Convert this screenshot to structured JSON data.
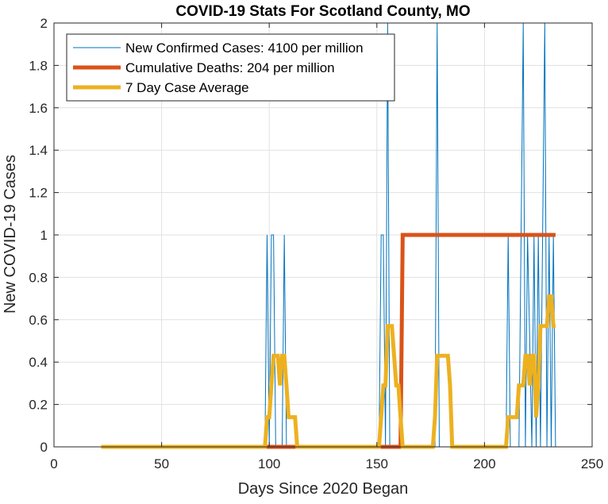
{
  "chart_data": {
    "type": "line",
    "title": "COVID-19 Stats For Scotland County, MO",
    "xlabel": "Days Since 2020 Began",
    "ylabel": "New COVID-19 Cases",
    "xlim": [
      0,
      250
    ],
    "ylim": [
      0,
      2
    ],
    "xticks": [
      0,
      50,
      100,
      150,
      200,
      250
    ],
    "yticks": [
      0,
      0.2,
      0.4,
      0.6,
      0.8,
      1,
      1.2,
      1.4,
      1.6,
      1.8,
      2
    ],
    "grid": true,
    "legend_position": "top-left",
    "series": [
      {
        "name": "New Confirmed Cases: 4100 per million",
        "color": "#0072BD",
        "line_width": "thin",
        "x": [
          22,
          98,
          99,
          100,
          101,
          102,
          103,
          104,
          105,
          106,
          107,
          108,
          151,
          152,
          153,
          154,
          155,
          156,
          177,
          178,
          179,
          210,
          211,
          212,
          216,
          217,
          218,
          219,
          220,
          222,
          223,
          224,
          225,
          226,
          227,
          228,
          229,
          230,
          231,
          232,
          233
        ],
        "y": [
          0,
          0,
          1,
          0,
          1,
          1,
          0,
          0,
          0,
          0,
          1,
          0,
          0,
          1,
          1,
          0,
          2,
          0,
          0,
          2,
          0,
          0,
          1,
          0,
          0,
          1,
          2,
          0,
          1,
          0,
          1,
          0,
          1,
          0,
          1,
          2,
          0,
          1,
          0,
          1,
          0
        ]
      },
      {
        "name": "Cumulative Deaths: 204 per million",
        "color": "#D95319",
        "line_width": "thick",
        "x": [
          22,
          161,
          162,
          233
        ],
        "y": [
          0,
          0,
          1,
          1
        ]
      },
      {
        "name": "7 Day Case Average",
        "color": "#EDB120",
        "line_width": "thick",
        "x": [
          22,
          98,
          99,
          100,
          101,
          102,
          103,
          104,
          105,
          106,
          107,
          108,
          109,
          112,
          113,
          150,
          151,
          152,
          153,
          154,
          155,
          156,
          157,
          158,
          159,
          160,
          161,
          162,
          176,
          177,
          178,
          179,
          183,
          184,
          185,
          209,
          210,
          211,
          215,
          216,
          217,
          218,
          219,
          220,
          221,
          222,
          223,
          224,
          225,
          226,
          227,
          228,
          229,
          230,
          231,
          232,
          233
        ],
        "y": [
          0,
          0,
          0.14,
          0.14,
          0.29,
          0.43,
          0.43,
          0.43,
          0.29,
          0.43,
          0.43,
          0.29,
          0.14,
          0.14,
          0,
          0,
          0,
          0.14,
          0.29,
          0.29,
          0.57,
          0.57,
          0.57,
          0.43,
          0.29,
          0.29,
          0.14,
          0,
          0,
          0.14,
          0.43,
          0.43,
          0.43,
          0.29,
          0,
          0,
          0,
          0.14,
          0.14,
          0.29,
          0.29,
          0.29,
          0.43,
          0.43,
          0.29,
          0.43,
          0.43,
          0.14,
          0.29,
          0.57,
          0.57,
          0.57,
          0.57,
          0.71,
          0.71,
          0.57,
          0.57
        ]
      }
    ]
  }
}
